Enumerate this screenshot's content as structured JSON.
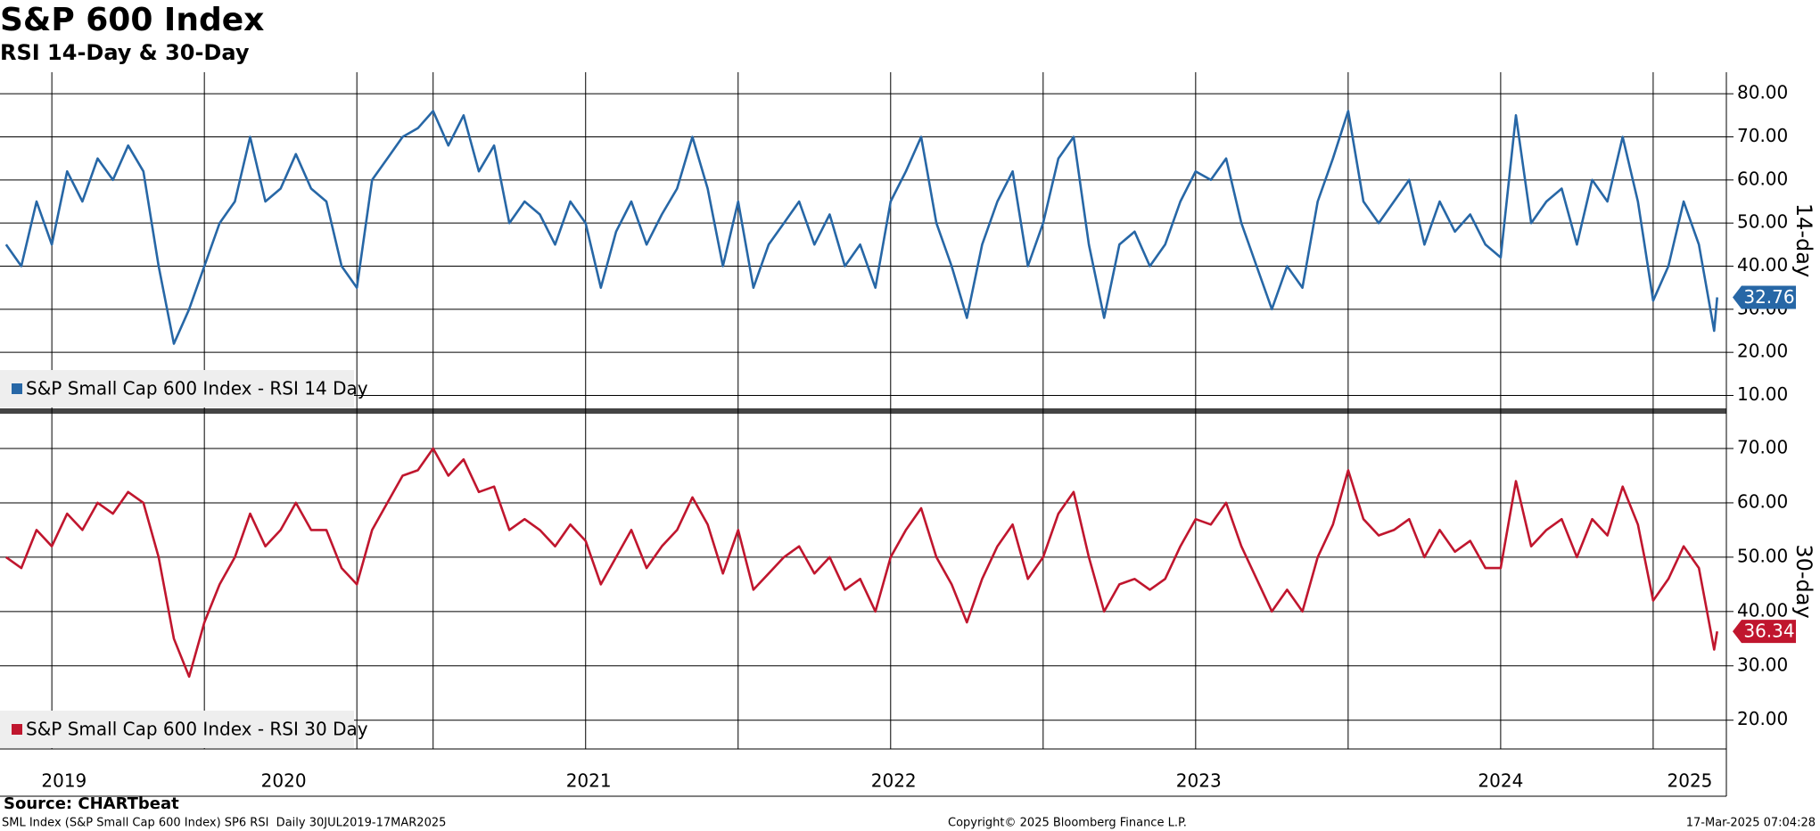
{
  "header": {
    "title": "S&P 600 Index",
    "subtitle": "RSI 14-Day & 30-Day"
  },
  "chart_data": {
    "type": "line",
    "x": [
      2019.6,
      2019.65,
      2019.7,
      2019.75,
      2019.8,
      2019.85,
      2019.9,
      2019.95,
      2020,
      2020.05,
      2020.1,
      2020.15,
      2020.2,
      2020.25,
      2020.3,
      2020.35,
      2020.4,
      2020.45,
      2020.5,
      2020.55,
      2020.6,
      2020.65,
      2020.7,
      2020.75,
      2020.8,
      2020.85,
      2020.9,
      2020.95,
      2021,
      2021.05,
      2021.1,
      2021.15,
      2021.2,
      2021.25,
      2021.3,
      2021.35,
      2021.4,
      2021.45,
      2021.5,
      2021.55,
      2021.6,
      2021.65,
      2021.7,
      2021.75,
      2021.8,
      2021.85,
      2021.9,
      2021.95,
      2022,
      2022.05,
      2022.1,
      2022.15,
      2022.2,
      2022.25,
      2022.3,
      2022.35,
      2022.4,
      2022.45,
      2022.5,
      2022.55,
      2022.6,
      2022.65,
      2022.7,
      2022.75,
      2022.8,
      2022.85,
      2022.9,
      2022.95,
      2023,
      2023.05,
      2023.1,
      2023.15,
      2023.2,
      2023.25,
      2023.3,
      2023.35,
      2023.4,
      2023.45,
      2023.5,
      2023.55,
      2023.6,
      2023.65,
      2023.7,
      2023.75,
      2023.8,
      2023.85,
      2023.9,
      2023.95,
      2024,
      2024.05,
      2024.1,
      2024.15,
      2024.2,
      2024.25,
      2024.3,
      2024.35,
      2024.4,
      2024.45,
      2024.5,
      2024.55,
      2024.6,
      2024.65,
      2024.7,
      2024.75,
      2024.8,
      2024.85,
      2024.9,
      2024.95,
      2025,
      2025.05,
      2025.1,
      2025.15,
      2025.2,
      2025.21
    ],
    "xlim": [
      2019.58,
      2025.24
    ],
    "xticks": [
      {
        "value": 2019.79,
        "label": "2019"
      },
      {
        "value": 2020.51,
        "label": "2020"
      },
      {
        "value": 2021.51,
        "label": "2021"
      },
      {
        "value": 2022.51,
        "label": "2022"
      },
      {
        "value": 2023.51,
        "label": "2023"
      },
      {
        "value": 2024.5,
        "label": "2024"
      },
      {
        "value": 2025.12,
        "label": "2025"
      }
    ],
    "xgrid": [
      2019.75,
      2020.25,
      2020.75,
      2021,
      2021.5,
      2022,
      2022.5,
      2023,
      2023.5,
      2024,
      2024.5,
      2025
    ],
    "panels": [
      {
        "y_label": "14-day",
        "ylim": [
          7,
          85
        ],
        "yticks": [
          {
            "value": 10,
            "label": "10.00"
          },
          {
            "value": 20,
            "label": "20.00"
          },
          {
            "value": 30,
            "label": "30.00"
          },
          {
            "value": 40,
            "label": "40.00"
          },
          {
            "value": 50,
            "label": "50.00"
          },
          {
            "value": 60,
            "label": "60.00"
          },
          {
            "value": 70,
            "label": "70.00"
          },
          {
            "value": 80,
            "label": "80.00"
          }
        ],
        "series": [
          {
            "name": "S&P Small Cap 600 Index - RSI 14 Day",
            "color": "#2767a6",
            "values": [
              45,
              40,
              55,
              45,
              62,
              55,
              65,
              60,
              68,
              62,
              40,
              22,
              30,
              40,
              50,
              55,
              70,
              55,
              58,
              66,
              58,
              55,
              40,
              35,
              60,
              65,
              70,
              72,
              76,
              68,
              75,
              62,
              68,
              50,
              55,
              52,
              45,
              55,
              50,
              35,
              48,
              55,
              45,
              52,
              58,
              70,
              58,
              40,
              55,
              35,
              45,
              50,
              55,
              45,
              52,
              40,
              45,
              35,
              55,
              62,
              70,
              50,
              40,
              28,
              45,
              55,
              62,
              40,
              50,
              65,
              70,
              45,
              28,
              45,
              48,
              40,
              45,
              55,
              62,
              60,
              65,
              50,
              40,
              30,
              40,
              35,
              55,
              65,
              76,
              55,
              50,
              55,
              60,
              45,
              55,
              48,
              52,
              45,
              42,
              75,
              50,
              55,
              58,
              45,
              60,
              55,
              70,
              55,
              32,
              40,
              55,
              45,
              25,
              32.76
            ]
          }
        ]
      },
      {
        "y_label": "30-day",
        "ylim": [
          14.7,
          76.4
        ],
        "yticks": [
          {
            "value": 20,
            "label": "20.00"
          },
          {
            "value": 30,
            "label": "30.00"
          },
          {
            "value": 40,
            "label": "40.00"
          },
          {
            "value": 50,
            "label": "50.00"
          },
          {
            "value": 60,
            "label": "60.00"
          },
          {
            "value": 70,
            "label": "70.00"
          }
        ],
        "series": [
          {
            "name": "S&P Small Cap 600 Index - RSI 30 Day",
            "color": "#c0162e",
            "values": [
              50,
              48,
              55,
              52,
              58,
              55,
              60,
              58,
              62,
              60,
              50,
              35,
              28,
              38,
              45,
              50,
              58,
              52,
              55,
              60,
              55,
              55,
              48,
              45,
              55,
              60,
              65,
              66,
              70,
              65,
              68,
              62,
              63,
              55,
              57,
              55,
              52,
              56,
              53,
              45,
              50,
              55,
              48,
              52,
              55,
              61,
              56,
              47,
              55,
              44,
              47,
              50,
              52,
              47,
              50,
              44,
              46,
              40,
              50,
              55,
              59,
              50,
              45,
              38,
              46,
              52,
              56,
              46,
              50,
              58,
              62,
              50,
              40,
              45,
              46,
              44,
              46,
              52,
              57,
              56,
              60,
              52,
              46,
              40,
              44,
              40,
              50,
              56,
              66,
              57,
              54,
              55,
              57,
              50,
              55,
              51,
              53,
              48,
              48,
              64,
              52,
              55,
              57,
              50,
              57,
              54,
              63,
              56,
              42,
              46,
              52,
              48,
              33,
              36.34
            ]
          }
        ]
      }
    ]
  },
  "footer": {
    "source": "Source: CHARTbeat",
    "description": "SML Index (S&P Small Cap 600 Index) SP6 RSI  Daily 30JUL2019-17MAR2025",
    "copyright": "Copyright© 2025 Bloomberg Finance L.P.",
    "timestamp": "17-Mar-2025 07:04:28"
  }
}
